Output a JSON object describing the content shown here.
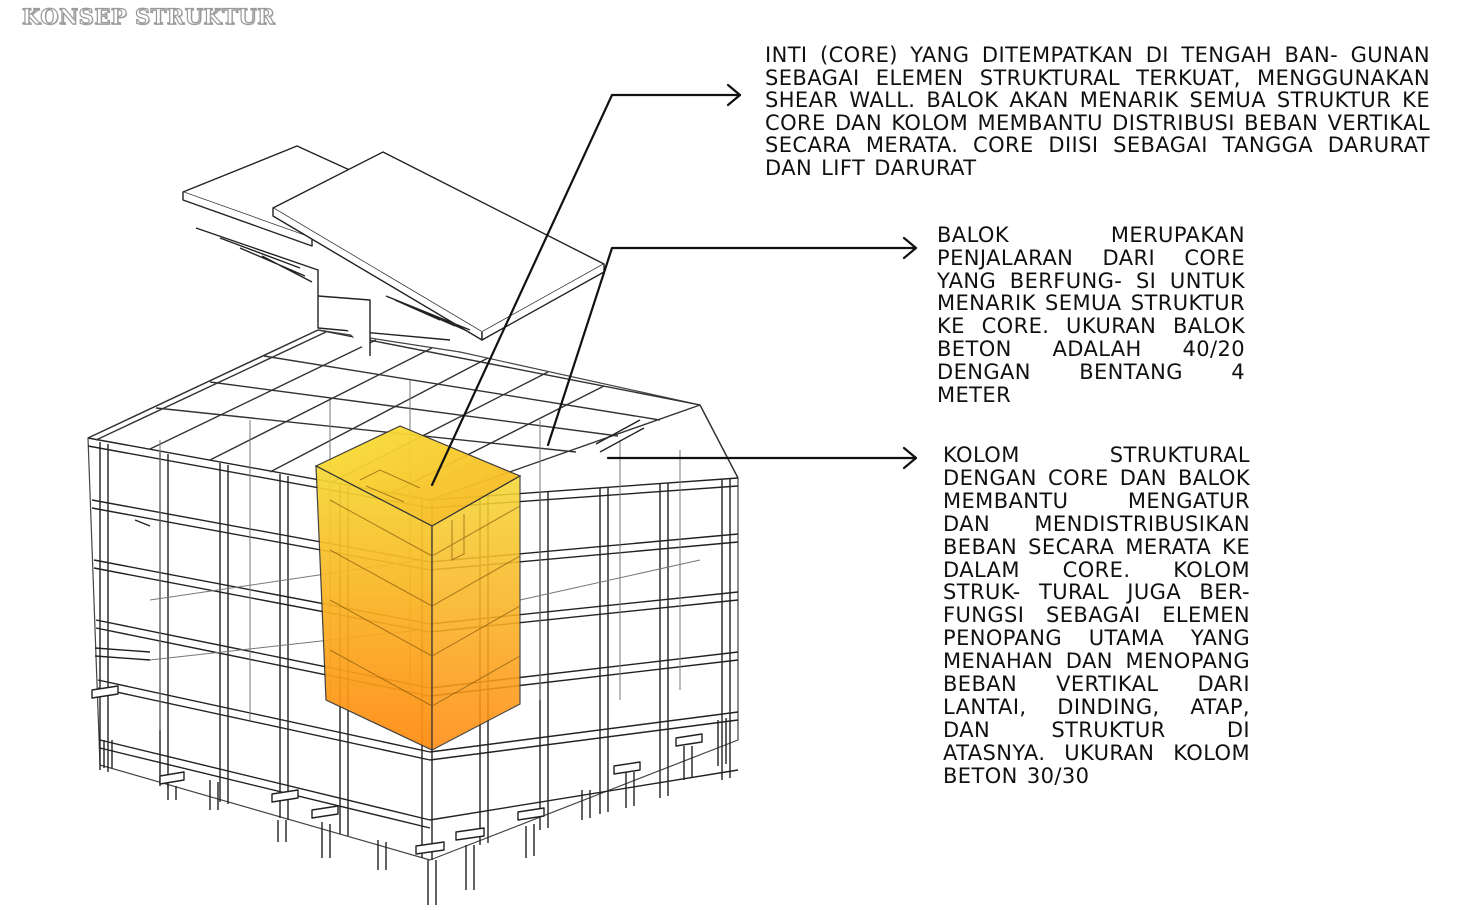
{
  "title": "KONSEP STRUKTUR",
  "colors": {
    "core_top": "#f5d835",
    "core_bottom": "#ff8a10",
    "line": "#111111"
  },
  "annotations": {
    "core": "Inti (core) yang ditempatkan di tengah ban- gunan sebagai elemen struktural terkuat, menggunakan shear wall. Balok akan menarik semua struktur ke core dan kolom membantu distribusi beban vertikal secara merata. Core diisi sebagai tangga darurat dan lift darurat",
    "balok": "Balok merupakan penjalaran dari core yang berfung- si untuk menarik semua struktur ke core. Ukuran balok beton adalah 40/20 dengan bentang 4 meter",
    "kolom": "Kolom struktural dengan core dan balok membantu mengatur dan mendistribusikan beban secara merata ke dalam core. Kolom struk- tural juga ber- fungsi sebagai elemen penopang utama yang menahan dan menopang beban vertikal dari lantai, dinding, atap, dan struktur di atasnya. Ukuran kolom beton 30/30"
  }
}
